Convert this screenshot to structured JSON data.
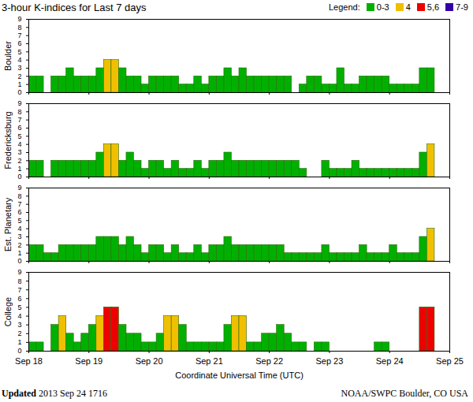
{
  "chart_data": {
    "type": "bar",
    "title": "3-hour K-indices for Last 7 days",
    "legend_title": "Legend:",
    "color_classes": [
      {
        "label": "0-3",
        "color": "#00b000",
        "values": [
          0,
          1,
          2,
          3
        ]
      },
      {
        "label": "4",
        "color": "#f0c000",
        "values": [
          4
        ]
      },
      {
        "label": "5,6",
        "color": "#ee0000",
        "values": [
          5,
          6
        ]
      },
      {
        "label": "7-9",
        "color": "#3300aa",
        "values": [
          7,
          8,
          9
        ]
      }
    ],
    "x_label": "Coordinate Universal Time (UTC)",
    "x": [
      0,
      3,
      6,
      9,
      12,
      15,
      18,
      21,
      24,
      27,
      30,
      33,
      36,
      39,
      42,
      45,
      48,
      51,
      54,
      57,
      60,
      63,
      66,
      69,
      72,
      75,
      78,
      81,
      84,
      87,
      90,
      93,
      96,
      99,
      102,
      105,
      108,
      111,
      114,
      117,
      120,
      123,
      126,
      129,
      132,
      135,
      138,
      141,
      144,
      147,
      150,
      153,
      156,
      159,
      162,
      165
    ],
    "xlim": [
      0,
      168
    ],
    "xticks": [
      {
        "value": 0,
        "label": "Sep 18"
      },
      {
        "value": 24,
        "label": "Sep 19"
      },
      {
        "value": 48,
        "label": "Sep 20"
      },
      {
        "value": 72,
        "label": "Sep 21"
      },
      {
        "value": 96,
        "label": "Sep 22"
      },
      {
        "value": 120,
        "label": "Sep 23"
      },
      {
        "value": 144,
        "label": "Sep 24"
      },
      {
        "value": 168,
        "label": "Sep 25"
      }
    ],
    "ylim": [
      0,
      9
    ],
    "yticks": [
      0,
      1,
      2,
      3,
      4,
      5,
      6,
      7,
      8,
      9
    ],
    "grid": false,
    "series": [
      {
        "name": "Boulder",
        "values": [
          2,
          2,
          0,
          2,
          2,
          3,
          2,
          2,
          2,
          3,
          4,
          4,
          3,
          2,
          2,
          1,
          2,
          2,
          2,
          2,
          1,
          1,
          2,
          1,
          2,
          2,
          3,
          2,
          3,
          2,
          2,
          2,
          2,
          2,
          2,
          0,
          1,
          2,
          2,
          1,
          1,
          3,
          1,
          1,
          2,
          2,
          2,
          2,
          1,
          1,
          1,
          1,
          3,
          3,
          0,
          0
        ]
      },
      {
        "name": "Fredericksburg",
        "values": [
          2,
          2,
          0,
          2,
          2,
          2,
          2,
          2,
          2,
          3,
          4,
          4,
          2,
          3,
          2,
          1,
          2,
          2,
          1,
          2,
          1,
          1,
          2,
          1,
          2,
          2,
          3,
          2,
          2,
          2,
          2,
          2,
          2,
          2,
          2,
          2,
          1,
          0,
          0,
          2,
          1,
          1,
          1,
          2,
          1,
          1,
          1,
          1,
          1,
          1,
          1,
          1,
          3,
          4,
          0,
          0
        ]
      },
      {
        "name": "Est. Planetary",
        "values": [
          2,
          2,
          1,
          1,
          2,
          2,
          2,
          2,
          2,
          3,
          3,
          3,
          2,
          3,
          2,
          1,
          2,
          2,
          1,
          2,
          1,
          1,
          2,
          1,
          2,
          2,
          3,
          2,
          2,
          2,
          2,
          2,
          2,
          2,
          1,
          1,
          1,
          1,
          1,
          2,
          1,
          1,
          1,
          1,
          2,
          1,
          1,
          1,
          2,
          1,
          1,
          1,
          3,
          4,
          0,
          0
        ]
      },
      {
        "name": "College",
        "values": [
          1,
          1,
          0,
          3,
          4,
          2,
          1,
          2,
          3,
          4,
          5,
          5,
          3,
          2,
          2,
          1,
          1,
          2,
          4,
          4,
          3,
          1,
          1,
          1,
          1,
          1,
          3,
          4,
          4,
          1,
          1,
          2,
          2,
          3,
          2,
          1,
          1,
          0,
          1,
          1,
          0,
          0,
          0,
          0,
          0,
          0,
          1,
          1,
          0,
          0,
          0,
          0,
          5,
          5,
          0,
          0
        ]
      }
    ],
    "footer_label": "Updated",
    "footer_text": "2013 Sep 24 1716",
    "footer_right": "NOAA/SWPC Boulder, CO USA"
  }
}
